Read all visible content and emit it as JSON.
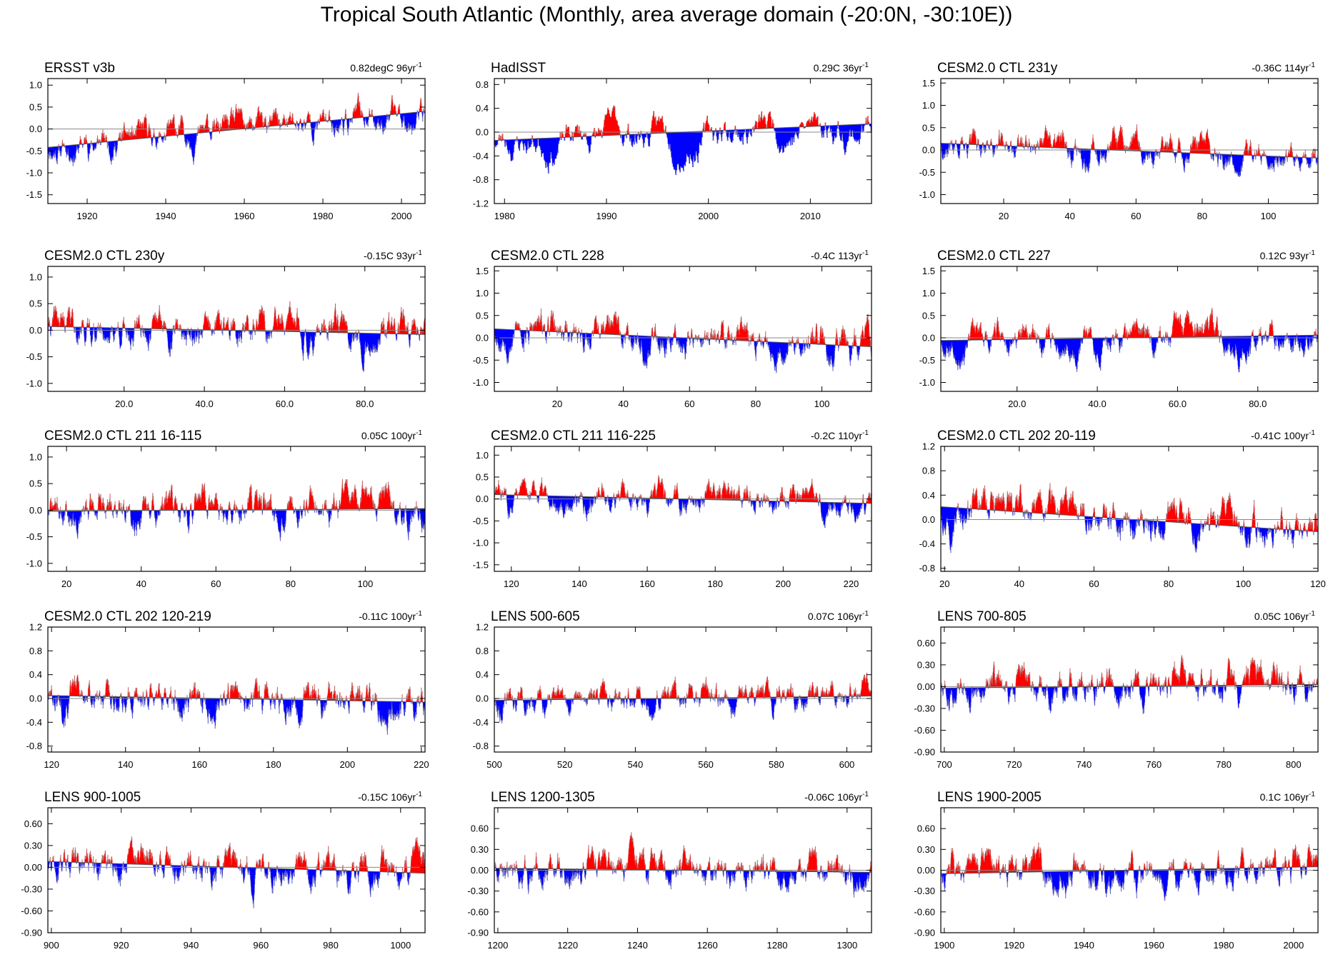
{
  "title": "Tropical South Atlantic (Monthly, area average domain (-20:0N, -30:10E))",
  "colors": {
    "positive": "#ff0000",
    "negative": "#0000ff",
    "trace": "#999999",
    "axis": "#000000",
    "zero_line": "#888888"
  },
  "chart_data": [
    {
      "type": "bar",
      "title": "ERSST v3b",
      "trend_label": "0.82degC 96yr",
      "trend_exp": "-1",
      "xlim": [
        1910,
        2006
      ],
      "ylim": [
        -1.7,
        1.15
      ],
      "xticks": [
        1920,
        1940,
        1960,
        1980,
        2000
      ],
      "xtick_labels": [
        "1920",
        "1940",
        "1960",
        "1980",
        "2000"
      ],
      "yticks": [
        -1.5,
        -1.0,
        -0.5,
        0.0,
        0.5,
        1.0
      ],
      "ytick_labels": [
        "-1.5",
        "-1.0",
        "-0.5",
        "0.0",
        "0.5",
        "1.0"
      ],
      "trend_line": [
        -0.42,
        0.4
      ],
      "amplitude": 0.5,
      "seed": 11
    },
    {
      "type": "bar",
      "title": "HadISST",
      "trend_label": "0.29C 36yr",
      "trend_exp": "-1",
      "xlim": [
        1979,
        2016
      ],
      "ylim": [
        -1.2,
        0.9
      ],
      "xticks": [
        1980,
        1990,
        2000,
        2010
      ],
      "xtick_labels": [
        "1980",
        "1990",
        "2000",
        "2010"
      ],
      "yticks": [
        -1.2,
        -0.8,
        -0.4,
        0.0,
        0.4,
        0.8
      ],
      "ytick_labels": [
        "-1.2",
        "-0.8",
        "-0.4",
        "0.0",
        "0.4",
        "0.8"
      ],
      "trend_line": [
        -0.14,
        0.14
      ],
      "amplitude": 0.55,
      "seed": 23
    },
    {
      "type": "bar",
      "title": "CESM2.0 CTL 231y",
      "trend_label": "-0.36C 114yr",
      "trend_exp": "-1",
      "xlim": [
        1,
        115
      ],
      "ylim": [
        -1.2,
        1.6
      ],
      "xticks": [
        20,
        40,
        60,
        80,
        100
      ],
      "xtick_labels": [
        "20",
        "40",
        "60",
        "80",
        "100"
      ],
      "yticks": [
        -1.0,
        -0.5,
        0.0,
        0.5,
        1.0,
        1.5
      ],
      "ytick_labels": [
        "-1.0",
        "-0.5",
        "0.0",
        "0.5",
        "1.0",
        "1.5"
      ],
      "trend_line": [
        0.15,
        -0.18
      ],
      "amplitude": 0.45,
      "seed": 37
    },
    {
      "type": "bar",
      "title": "CESM2.0 CTL 230y",
      "trend_label": "-0.15C 93yr",
      "trend_exp": "-1",
      "xlim": [
        1,
        95
      ],
      "ylim": [
        -1.15,
        1.2
      ],
      "xticks": [
        20,
        40,
        60,
        80
      ],
      "xtick_labels": [
        "20.0",
        "40.0",
        "60.0",
        "80.0"
      ],
      "yticks": [
        -1.0,
        -0.5,
        0.0,
        0.5,
        1.0
      ],
      "ytick_labels": [
        "-1.0",
        "-0.5",
        "0.0",
        "0.5",
        "1.0"
      ],
      "trend_line": [
        0.07,
        -0.08
      ],
      "amplitude": 0.5,
      "seed": 41
    },
    {
      "type": "bar",
      "title": "CESM2.0 CTL 228",
      "trend_label": "-0.4C 113yr",
      "trend_exp": "-1",
      "xlim": [
        1,
        115
      ],
      "ylim": [
        -1.2,
        1.6
      ],
      "xticks": [
        20,
        40,
        60,
        80,
        100
      ],
      "xtick_labels": [
        "20",
        "40",
        "60",
        "80",
        "100"
      ],
      "yticks": [
        -1.0,
        -0.5,
        0.0,
        0.5,
        1.0,
        1.5
      ],
      "ytick_labels": [
        "-1.0",
        "-0.5",
        "0.0",
        "0.5",
        "1.0",
        "1.5"
      ],
      "trend_line": [
        0.2,
        -0.2
      ],
      "amplitude": 0.55,
      "seed": 53
    },
    {
      "type": "bar",
      "title": "CESM2.0 CTL 227",
      "trend_label": "0.12C 93yr",
      "trend_exp": "-1",
      "xlim": [
        1,
        95
      ],
      "ylim": [
        -1.2,
        1.6
      ],
      "xticks": [
        20,
        40,
        60,
        80
      ],
      "xtick_labels": [
        "20.0",
        "40.0",
        "60.0",
        "80.0"
      ],
      "yticks": [
        -1.0,
        -0.5,
        0.0,
        0.5,
        1.0,
        1.5
      ],
      "ytick_labels": [
        "-1.0",
        "-0.5",
        "0.0",
        "0.5",
        "1.0",
        "1.5"
      ],
      "trend_line": [
        -0.06,
        0.06
      ],
      "amplitude": 0.5,
      "seed": 67
    },
    {
      "type": "bar",
      "title": "CESM2.0 CTL 211 16-115",
      "trend_label": "0.05C 100yr",
      "trend_exp": "-1",
      "xlim": [
        15,
        116
      ],
      "ylim": [
        -1.15,
        1.2
      ],
      "xticks": [
        20,
        40,
        60,
        80,
        100
      ],
      "xtick_labels": [
        "20",
        "40",
        "60",
        "80",
        "100"
      ],
      "yticks": [
        -1.0,
        -0.5,
        0.0,
        0.5,
        1.0
      ],
      "ytick_labels": [
        "-1.0",
        "-0.5",
        "0.0",
        "0.5",
        "1.0"
      ],
      "trend_line": [
        -0.02,
        0.03
      ],
      "amplitude": 0.5,
      "seed": 71
    },
    {
      "type": "bar",
      "title": "CESM2.0 CTL 211 116-225",
      "trend_label": "-0.2C 110yr",
      "trend_exp": "-1",
      "xlim": [
        115,
        226
      ],
      "ylim": [
        -1.65,
        1.2
      ],
      "xticks": [
        120,
        140,
        160,
        180,
        200,
        220
      ],
      "xtick_labels": [
        "120",
        "140",
        "160",
        "180",
        "200",
        "220"
      ],
      "yticks": [
        -1.5,
        -1.0,
        -0.5,
        0.0,
        0.5,
        1.0
      ],
      "ytick_labels": [
        "-1.5",
        "-1.0",
        "-0.5",
        "0.0",
        "0.5",
        "1.0"
      ],
      "trend_line": [
        0.1,
        -0.1
      ],
      "amplitude": 0.45,
      "seed": 83
    },
    {
      "type": "bar",
      "title": "CESM2.0 CTL 202 20-119",
      "trend_label": "-0.41C 100yr",
      "trend_exp": "-1",
      "xlim": [
        19,
        120
      ],
      "ylim": [
        -0.85,
        1.2
      ],
      "xticks": [
        20,
        40,
        60,
        80,
        100,
        120
      ],
      "xtick_labels": [
        "20",
        "40",
        "60",
        "80",
        "100",
        "120"
      ],
      "yticks": [
        -0.8,
        -0.4,
        0.0,
        0.4,
        0.8,
        1.2
      ],
      "ytick_labels": [
        "-0.8",
        "-0.4",
        "0.0",
        "0.4",
        "0.8",
        "1.2"
      ],
      "trend_line": [
        0.21,
        -0.2
      ],
      "amplitude": 0.45,
      "seed": 97
    },
    {
      "type": "bar",
      "title": "CESM2.0 CTL 202 120-219",
      "trend_label": "-0.11C 100yr",
      "trend_exp": "-1",
      "xlim": [
        119,
        221
      ],
      "ylim": [
        -0.9,
        1.2
      ],
      "xticks": [
        120,
        140,
        160,
        180,
        200,
        220
      ],
      "xtick_labels": [
        "120",
        "140",
        "160",
        "180",
        "200",
        "220"
      ],
      "yticks": [
        -0.8,
        -0.4,
        0.0,
        0.4,
        0.8,
        1.2
      ],
      "ytick_labels": [
        "-0.8",
        "-0.4",
        "0.0",
        "0.4",
        "0.8",
        "1.2"
      ],
      "trend_line": [
        0.05,
        -0.06
      ],
      "amplitude": 0.45,
      "seed": 101
    },
    {
      "type": "bar",
      "title": "LENS 500-605",
      "trend_label": "0.07C 106yr",
      "trend_exp": "-1",
      "xlim": [
        500,
        607
      ],
      "ylim": [
        -0.9,
        1.2
      ],
      "xticks": [
        500,
        520,
        540,
        560,
        580,
        600
      ],
      "xtick_labels": [
        "500",
        "520",
        "540",
        "560",
        "580",
        "600"
      ],
      "yticks": [
        -0.8,
        -0.4,
        0.0,
        0.4,
        0.8,
        1.2
      ],
      "ytick_labels": [
        "-0.8",
        "-0.4",
        "0.0",
        "0.4",
        "0.8",
        "1.2"
      ],
      "trend_line": [
        -0.03,
        0.04
      ],
      "amplitude": 0.35,
      "seed": 113
    },
    {
      "type": "bar",
      "title": "LENS 700-805",
      "trend_label": "0.05C 106yr",
      "trend_exp": "-1",
      "xlim": [
        699,
        807
      ],
      "ylim": [
        -0.9,
        0.82
      ],
      "xticks": [
        700,
        720,
        740,
        760,
        780,
        800
      ],
      "xtick_labels": [
        "700",
        "720",
        "740",
        "760",
        "780",
        "800"
      ],
      "yticks": [
        -0.9,
        -0.6,
        -0.3,
        0.0,
        0.3,
        0.6
      ],
      "ytick_labels": [
        "-0.90",
        "-0.60",
        "-0.30",
        "0.00",
        "0.30",
        "0.60"
      ],
      "trend_line": [
        -0.02,
        0.03
      ],
      "amplitude": 0.35,
      "seed": 127
    },
    {
      "type": "bar",
      "title": "LENS 900-1005",
      "trend_label": "-0.15C 106yr",
      "trend_exp": "-1",
      "xlim": [
        899,
        1007
      ],
      "ylim": [
        -0.9,
        0.82
      ],
      "xticks": [
        900,
        920,
        940,
        960,
        980,
        1000
      ],
      "xtick_labels": [
        "900",
        "920",
        "940",
        "960",
        "980",
        "1000"
      ],
      "yticks": [
        -0.9,
        -0.6,
        -0.3,
        0.0,
        0.3,
        0.6
      ],
      "ytick_labels": [
        "-0.90",
        "-0.60",
        "-0.30",
        "0.00",
        "0.30",
        "0.60"
      ],
      "trend_line": [
        0.08,
        -0.08
      ],
      "amplitude": 0.35,
      "seed": 131
    },
    {
      "type": "bar",
      "title": "LENS 1200-1305",
      "trend_label": "-0.06C 106yr",
      "trend_exp": "-1",
      "xlim": [
        1199,
        1307
      ],
      "ylim": [
        -0.9,
        0.9
      ],
      "xticks": [
        1200,
        1220,
        1240,
        1260,
        1280,
        1300
      ],
      "xtick_labels": [
        "1200",
        "1220",
        "1240",
        "1260",
        "1280",
        "1300"
      ],
      "yticks": [
        -0.9,
        -0.6,
        -0.3,
        0.0,
        0.3,
        0.6
      ],
      "ytick_labels": [
        "-0.90",
        "-0.60",
        "-0.30",
        "0.00",
        "0.30",
        "0.60"
      ],
      "trend_line": [
        0.03,
        -0.03
      ],
      "amplitude": 0.35,
      "seed": 149
    },
    {
      "type": "bar",
      "title": "LENS 1900-2005",
      "trend_label": "0.1C 106yr",
      "trend_exp": "-1",
      "xlim": [
        1899,
        2007
      ],
      "ylim": [
        -0.9,
        0.9
      ],
      "xticks": [
        1900,
        1920,
        1940,
        1960,
        1980,
        2000
      ],
      "xtick_labels": [
        "1900",
        "1920",
        "1940",
        "1960",
        "1980",
        "2000"
      ],
      "yticks": [
        -0.9,
        -0.6,
        -0.3,
        0.0,
        0.3,
        0.6
      ],
      "ytick_labels": [
        "-0.90",
        "-0.60",
        "-0.30",
        "0.00",
        "0.30",
        "0.60"
      ],
      "trend_line": [
        -0.05,
        0.05
      ],
      "amplitude": 0.35,
      "seed": 151
    }
  ]
}
